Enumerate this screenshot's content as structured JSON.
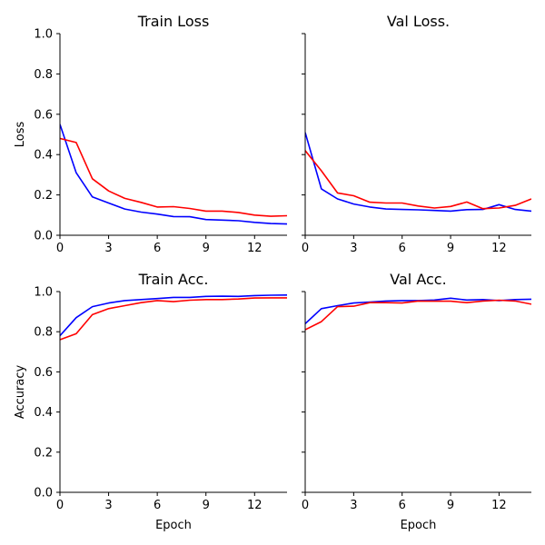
{
  "chart_data": [
    {
      "type": "line",
      "title": "Train Loss",
      "xlabel": "",
      "ylabel": "Loss",
      "xlim": [
        0,
        14
      ],
      "ylim": [
        0,
        1
      ],
      "xticks": [
        0,
        3,
        6,
        9,
        12
      ],
      "yticks": [
        0.0,
        0.2,
        0.4,
        0.6,
        0.8,
        1.0
      ],
      "ytick_labels_shown": true,
      "x": [
        0,
        1,
        2,
        3,
        4,
        5,
        6,
        7,
        8,
        9,
        10,
        11,
        12,
        13,
        14
      ],
      "series": [
        {
          "color": "#0000ff",
          "values": [
            0.55,
            0.31,
            0.19,
            0.16,
            0.13,
            0.115,
            0.105,
            0.093,
            0.092,
            0.078,
            0.075,
            0.072,
            0.064,
            0.058,
            0.056
          ]
        },
        {
          "color": "#ff0000",
          "values": [
            0.48,
            0.46,
            0.28,
            0.22,
            0.183,
            0.163,
            0.14,
            0.142,
            0.133,
            0.12,
            0.12,
            0.113,
            0.1,
            0.094,
            0.097
          ]
        }
      ]
    },
    {
      "type": "line",
      "title": "Val Loss.",
      "xlabel": "",
      "ylabel": "",
      "xlim": [
        0,
        14
      ],
      "ylim": [
        0,
        1
      ],
      "xticks": [
        0,
        3,
        6,
        9,
        12
      ],
      "yticks": [
        0.0,
        0.2,
        0.4,
        0.6,
        0.8,
        1.0
      ],
      "ytick_labels_shown": false,
      "x": [
        0,
        1,
        2,
        3,
        4,
        5,
        6,
        7,
        8,
        9,
        10,
        11,
        12,
        13,
        14
      ],
      "series": [
        {
          "color": "#0000ff",
          "values": [
            0.51,
            0.23,
            0.18,
            0.155,
            0.14,
            0.13,
            0.128,
            0.126,
            0.123,
            0.12,
            0.127,
            0.128,
            0.152,
            0.128,
            0.12
          ]
        },
        {
          "color": "#ff0000",
          "values": [
            0.42,
            0.32,
            0.21,
            0.196,
            0.164,
            0.16,
            0.16,
            0.145,
            0.135,
            0.143,
            0.165,
            0.132,
            0.135,
            0.148,
            0.18
          ]
        }
      ]
    },
    {
      "type": "line",
      "title": "Train Acc.",
      "xlabel": "Epoch",
      "ylabel": "Accuracy",
      "xlim": [
        0,
        14
      ],
      "ylim": [
        0,
        1
      ],
      "xticks": [
        0,
        3,
        6,
        9,
        12
      ],
      "yticks": [
        0.0,
        0.2,
        0.4,
        0.6,
        0.8,
        1.0
      ],
      "ytick_labels_shown": true,
      "x": [
        0,
        1,
        2,
        3,
        4,
        5,
        6,
        7,
        8,
        9,
        10,
        11,
        12,
        13,
        14
      ],
      "series": [
        {
          "color": "#0000ff",
          "values": [
            0.78,
            0.87,
            0.925,
            0.943,
            0.955,
            0.96,
            0.965,
            0.971,
            0.971,
            0.976,
            0.977,
            0.976,
            0.98,
            0.982,
            0.983
          ]
        },
        {
          "color": "#ff0000",
          "values": [
            0.76,
            0.79,
            0.885,
            0.915,
            0.93,
            0.945,
            0.955,
            0.95,
            0.957,
            0.96,
            0.96,
            0.963,
            0.968,
            0.969,
            0.969
          ]
        }
      ]
    },
    {
      "type": "line",
      "title": "Val Acc.",
      "xlabel": "Epoch",
      "ylabel": "",
      "xlim": [
        0,
        14
      ],
      "ylim": [
        0,
        1
      ],
      "xticks": [
        0,
        3,
        6,
        9,
        12
      ],
      "yticks": [
        0.0,
        0.2,
        0.4,
        0.6,
        0.8,
        1.0
      ],
      "ytick_labels_shown": false,
      "x": [
        0,
        1,
        2,
        3,
        4,
        5,
        6,
        7,
        8,
        9,
        10,
        11,
        12,
        13,
        14
      ],
      "series": [
        {
          "color": "#0000ff",
          "values": [
            0.84,
            0.915,
            0.93,
            0.943,
            0.948,
            0.953,
            0.955,
            0.955,
            0.958,
            0.967,
            0.958,
            0.96,
            0.955,
            0.96,
            0.962
          ]
        },
        {
          "color": "#ff0000",
          "values": [
            0.81,
            0.85,
            0.925,
            0.927,
            0.945,
            0.945,
            0.943,
            0.953,
            0.952,
            0.952,
            0.945,
            0.953,
            0.957,
            0.953,
            0.937
          ]
        }
      ]
    }
  ]
}
